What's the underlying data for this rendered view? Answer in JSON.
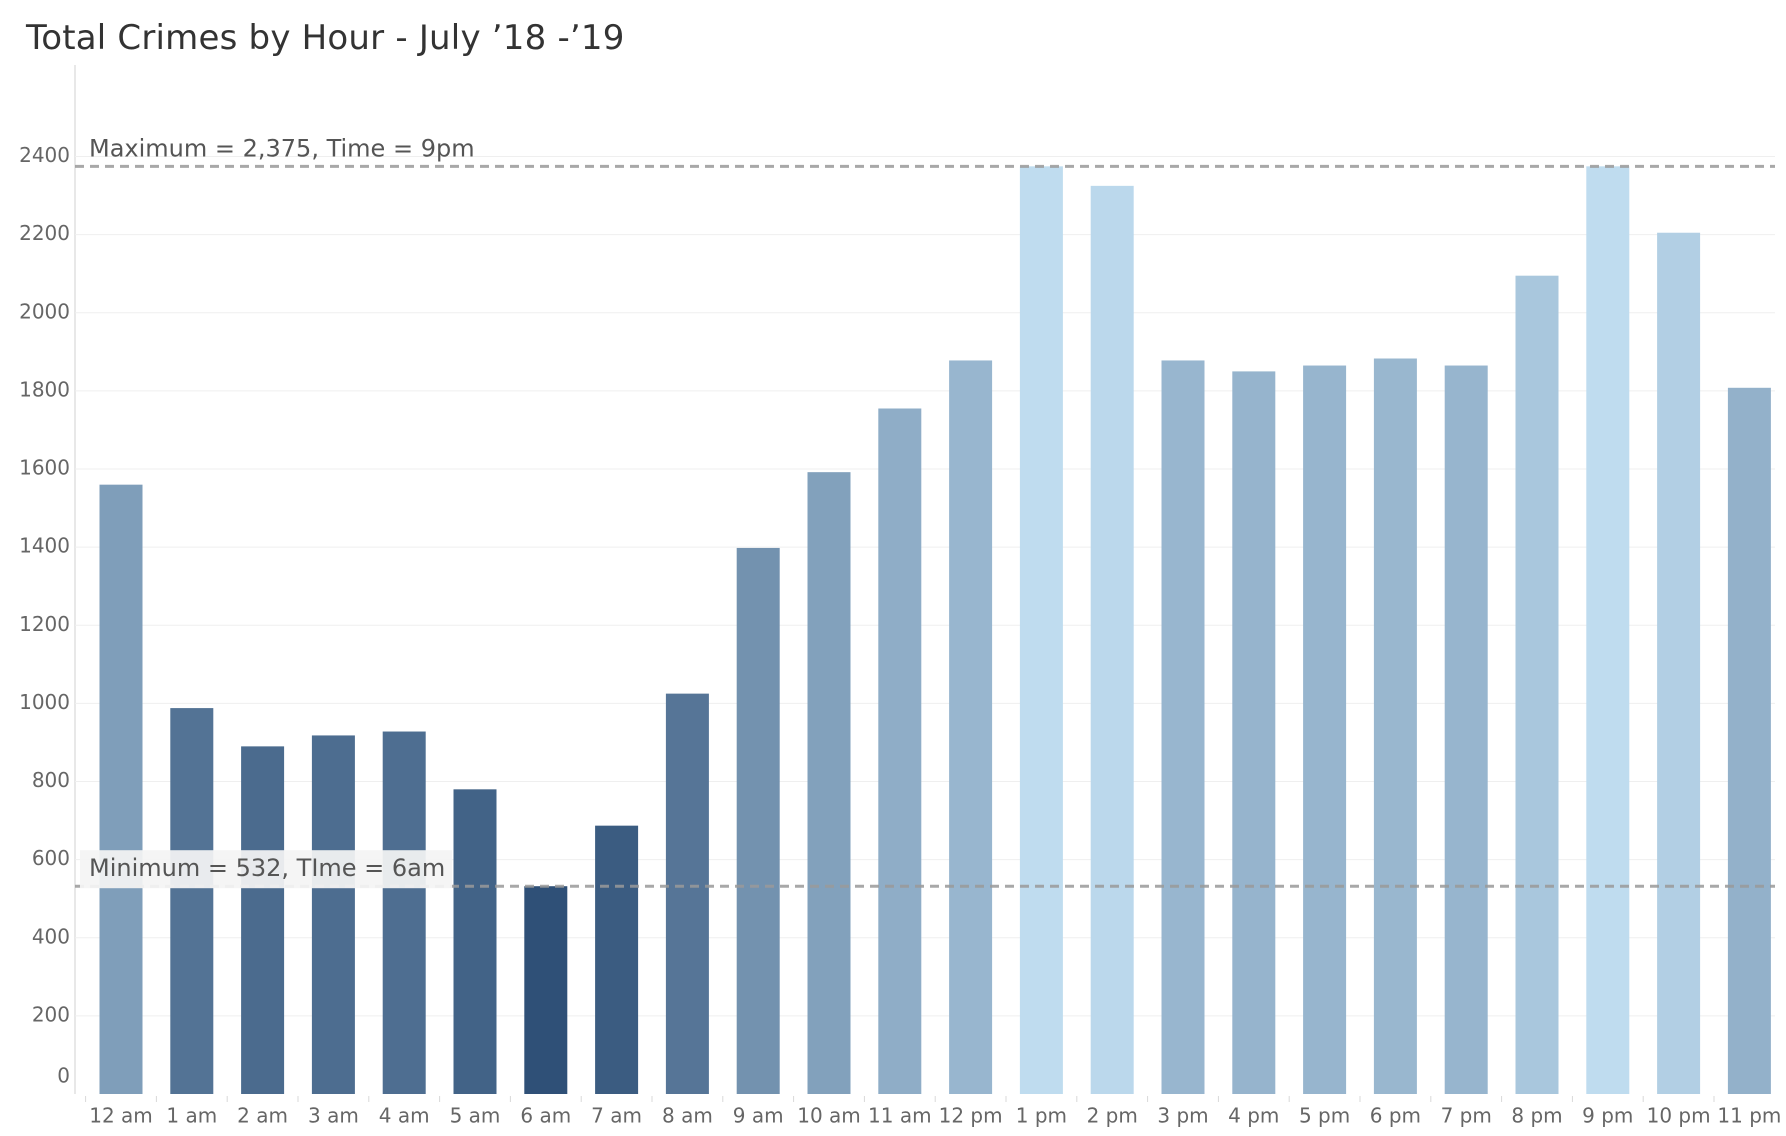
{
  "chart_data": {
    "type": "bar",
    "title": "Total Crimes by Hour - July ’18 -’19",
    "xlabel": "",
    "ylabel": "",
    "ylim": [
      0,
      2400
    ],
    "yticks": [
      0,
      200,
      400,
      600,
      800,
      1000,
      1200,
      1400,
      1600,
      1800,
      2000,
      2200,
      2400
    ],
    "grid": true,
    "legend": "none",
    "categories": [
      "12 am",
      "1 am",
      "2 am",
      "3 am",
      "4 am",
      "5 am",
      "6 am",
      "7 am",
      "8 am",
      "9 am",
      "10 am",
      "11 am",
      "12 pm",
      "1 pm",
      "2 pm",
      "3 pm",
      "4 pm",
      "5 pm",
      "6 pm",
      "7 pm",
      "8 pm",
      "9 pm",
      "10 pm",
      "11 pm"
    ],
    "values": [
      1560,
      988,
      890,
      918,
      928,
      780,
      532,
      687,
      1025,
      1398,
      1592,
      1755,
      1878,
      2375,
      2325,
      1878,
      1850,
      1865,
      1883,
      1865,
      2095,
      2375,
      2205,
      1808
    ],
    "color_scale": {
      "low": "#2f5077",
      "high": "#bfdcef"
    },
    "reference_lines": [
      {
        "label": "Maximum = 2,375, Time = 9pm",
        "value": 2375,
        "position": "top-left"
      },
      {
        "label": "Minimum = 532, TIme = 6am",
        "value": 532,
        "position": "top-left"
      }
    ]
  }
}
